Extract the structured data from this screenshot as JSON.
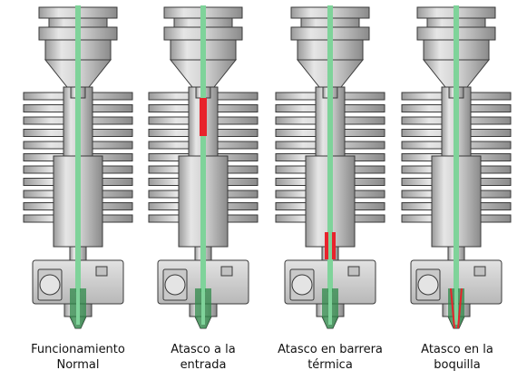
{
  "colors": {
    "metal_light": "#d6d6d6",
    "metal_dark": "#8e8e8e",
    "outline": "#3a3a3a",
    "filament": "#7fd39a",
    "filament_dark": "#2f8a4a",
    "clog": "#e8232c",
    "background": "#ffffff"
  },
  "panels": [
    {
      "id": "normal",
      "caption_line1": "Funcionamiento",
      "caption_line2": "Normal",
      "clog": "none"
    },
    {
      "id": "entrada",
      "caption_line1": "Atasco a la",
      "caption_line2": "entrada",
      "clog": "entrada"
    },
    {
      "id": "barrera",
      "caption_line1": "Atasco en barrera",
      "caption_line2": "térmica",
      "clog": "barrera"
    },
    {
      "id": "boquilla",
      "caption_line1": "Atasco en la",
      "caption_line2": "boquilla",
      "clog": "boquilla"
    }
  ]
}
